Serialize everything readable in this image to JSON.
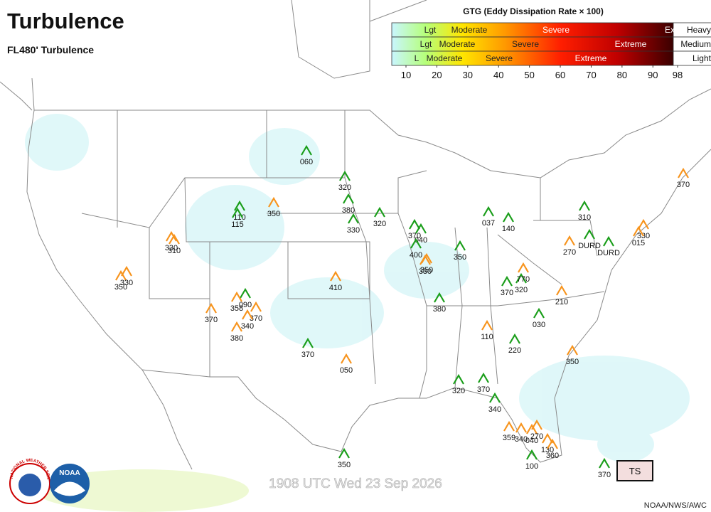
{
  "header": {
    "title": "Turbulence",
    "subtitle": "FL480' Turbulence"
  },
  "legend": {
    "title": "GTG (Eddy Dissipation Rate × 100)",
    "rows": [
      {
        "labels": [
          "Lgt",
          "Moderate",
          "Severe",
          "Ex"
        ],
        "level": "Heavy"
      },
      {
        "labels": [
          "Lgt",
          "Moderate",
          "Severe",
          "Extreme"
        ],
        "level": "Medium"
      },
      {
        "labels": [
          "L",
          "Moderate",
          "Severe",
          "Extreme"
        ],
        "level": "Light"
      }
    ],
    "ticks": [
      10,
      20,
      30,
      40,
      50,
      60,
      70,
      80,
      90,
      98
    ]
  },
  "reports": [
    {
      "label": "060",
      "color": "#1a9e1a"
    },
    {
      "label": "320",
      "color": "#1a9e1a"
    },
    {
      "label": "380",
      "color": "#1a9e1a"
    },
    {
      "label": "330",
      "color": "#1a9e1a"
    },
    {
      "label": "320",
      "color": "#1a9e1a"
    },
    {
      "label": "110",
      "color": "#1a9e1a"
    },
    {
      "label": "115",
      "color": "#1a9e1a"
    },
    {
      "label": "370",
      "color": "#1a9e1a"
    },
    {
      "label": "040",
      "color": "#1a9e1a"
    },
    {
      "label": "400",
      "color": "#1a9e1a"
    },
    {
      "label": "350",
      "color": "#1a9e1a"
    },
    {
      "label": "037",
      "color": "#1a9e1a"
    },
    {
      "label": "140",
      "color": "#1a9e1a"
    },
    {
      "label": "310",
      "color": "#1a9e1a"
    },
    {
      "label": "DURD",
      "color": "#1a9e1a"
    },
    {
      "label": "DURD",
      "color": "#1a9e1a"
    },
    {
      "label": "370",
      "color": "#1a9e1a"
    },
    {
      "label": "320",
      "color": "#1a9e1a"
    },
    {
      "label": "380",
      "color": "#1a9e1a"
    },
    {
      "label": "030",
      "color": "#1a9e1a"
    },
    {
      "label": "220",
      "color": "#1a9e1a"
    },
    {
      "label": "370",
      "color": "#1a9e1a"
    },
    {
      "label": "320",
      "color": "#1a9e1a"
    },
    {
      "label": "370",
      "color": "#1a9e1a"
    },
    {
      "label": "340",
      "color": "#1a9e1a"
    },
    {
      "label": "350",
      "color": "#1a9e1a"
    },
    {
      "label": "100",
      "color": "#1a9e1a"
    },
    {
      "label": "370",
      "color": "#1a9e1a"
    },
    {
      "label": "090",
      "color": "#1a9e1a"
    },
    {
      "label": "350",
      "color": "#f7941d"
    },
    {
      "label": "310",
      "color": "#f7941d"
    },
    {
      "label": "330",
      "color": "#f7941d"
    },
    {
      "label": "350",
      "color": "#f7941d"
    },
    {
      "label": "330",
      "color": "#f7941d"
    },
    {
      "label": "410",
      "color": "#f7941d"
    },
    {
      "label": "050",
      "color": "#f7941d"
    },
    {
      "label": "370",
      "color": "#f7941d"
    },
    {
      "label": "358",
      "color": "#f7941d"
    },
    {
      "label": "380",
      "color": "#f7941d"
    },
    {
      "label": "370",
      "color": "#f7941d"
    },
    {
      "label": "340",
      "color": "#f7941d"
    },
    {
      "label": "350",
      "color": "#f7941d"
    },
    {
      "label": "330",
      "color": "#f7941d"
    },
    {
      "label": "270",
      "color": "#f7941d"
    },
    {
      "label": "330",
      "color": "#f7941d"
    },
    {
      "label": "015",
      "color": "#f7941d"
    },
    {
      "label": "370",
      "color": "#f7941d"
    },
    {
      "label": "770",
      "color": "#f7941d"
    },
    {
      "label": "210",
      "color": "#f7941d"
    },
    {
      "label": "110",
      "color": "#f7941d"
    },
    {
      "label": "350",
      "color": "#f7941d"
    },
    {
      "label": "359",
      "color": "#f7941d"
    },
    {
      "label": "340",
      "color": "#f7941d"
    },
    {
      "label": "040",
      "color": "#f7941d"
    },
    {
      "label": "270",
      "color": "#f7941d"
    },
    {
      "label": "130",
      "color": "#f7941d"
    },
    {
      "label": "360",
      "color": "#f7941d"
    }
  ],
  "timestamp": "1908 UTC Wed 23 Sep 2026",
  "credit": "NOAA/NWS/AWC",
  "button": "TS",
  "logos": {
    "nws": "NATIONAL WEATHER SERVICE",
    "noaa": "NOAA"
  }
}
